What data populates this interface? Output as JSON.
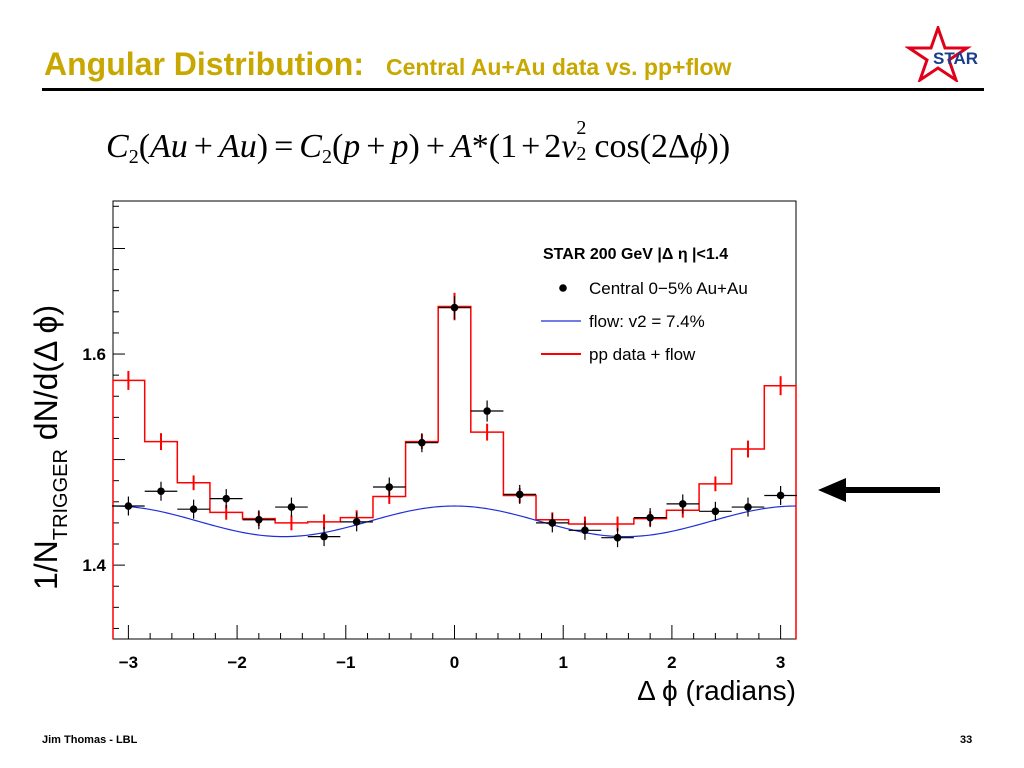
{
  "slide": {
    "title_main": "Angular Distribution:",
    "title_sub": "Central Au+Au data vs. pp+flow",
    "logo_text": "STAR",
    "footer_left": "Jim Thomas - LBL",
    "page_number": "33",
    "colors": {
      "title": "#c8a800",
      "star_logo": "#e0001a",
      "logo_text": "#1a3c8c",
      "data_red": "#ff0000",
      "flow_blue": "#1f2fd8"
    }
  },
  "formula": {
    "c": "C",
    "two": "2",
    "au": "Au",
    "plus": "+",
    "eq": "=",
    "p": "p",
    "a": "A",
    "star": "*",
    "one": "1",
    "two_v": "2",
    "v": "v",
    "sq": "2",
    "cos": "cos",
    "delta": "Δ",
    "phi": "ϕ",
    "lparen": "(",
    "rparen": ")"
  },
  "chart_data": {
    "type": "scatter",
    "xlabel": "Δ ϕ (radians)",
    "ylabel_main": "1/N",
    "ylabel_sub": "TRIGGER",
    "ylabel_rest": "dN/d(Δ ϕ)",
    "xlim": [
      -3.14159,
      3.14159
    ],
    "ylim": [
      1.33,
      1.745
    ],
    "xticks": [
      -3,
      -2,
      -1,
      0,
      1,
      2,
      3
    ],
    "xtick_labels": [
      "−3",
      "−2",
      "−1",
      "0",
      "1",
      "2",
      "3"
    ],
    "yticks": [
      1.4,
      1.6
    ],
    "ytick_labels": [
      "1.4",
      "1.6"
    ],
    "grid": false,
    "legend": {
      "position": "top-right",
      "header": "STAR 200 GeV |Δ η |<1.4",
      "entries": [
        "Central 0−5% Au+Au",
        "flow: v2 = 7.4%",
        "pp data + flow"
      ]
    },
    "series": [
      {
        "name": "Central 0−5% Au+Au",
        "style": "points",
        "color": "#000000",
        "x": [
          -3.0,
          -2.7,
          -2.4,
          -2.1,
          -1.8,
          -1.5,
          -1.2,
          -0.9,
          -0.6,
          -0.3,
          0.0,
          0.3,
          0.6,
          0.9,
          1.2,
          1.5,
          1.8,
          2.1,
          2.4,
          2.7,
          3.0
        ],
        "y": [
          1.456,
          1.47,
          1.453,
          1.463,
          1.443,
          1.455,
          1.427,
          1.441,
          1.474,
          1.516,
          1.644,
          1.546,
          1.467,
          1.44,
          1.433,
          1.426,
          1.445,
          1.458,
          1.451,
          1.455,
          1.466
        ],
        "yerr": [
          0.009,
          0.009,
          0.009,
          0.009,
          0.009,
          0.009,
          0.009,
          0.009,
          0.009,
          0.009,
          0.011,
          0.01,
          0.009,
          0.009,
          0.009,
          0.009,
          0.009,
          0.009,
          0.009,
          0.009,
          0.009
        ]
      },
      {
        "name": "flow: v2 = 7.4%",
        "style": "line",
        "color": "#1f2fd8",
        "function": "cosine",
        "mean": 1.4415,
        "amplitude": 0.0145
      },
      {
        "name": "pp data + flow",
        "style": "step",
        "color": "#ff0000",
        "x": [
          -3.0,
          -2.7,
          -2.4,
          -2.1,
          -1.8,
          -1.5,
          -1.2,
          -0.9,
          -0.6,
          -0.3,
          0.0,
          0.3,
          0.6,
          0.9,
          1.2,
          1.5,
          1.8,
          2.1,
          2.4,
          2.7,
          3.0
        ],
        "y": [
          1.575,
          1.517,
          1.478,
          1.45,
          1.444,
          1.44,
          1.441,
          1.445,
          1.465,
          1.517,
          1.645,
          1.526,
          1.466,
          1.443,
          1.439,
          1.439,
          1.444,
          1.452,
          1.477,
          1.51,
          1.57
        ],
        "yerr": [
          0.009,
          0.008,
          0.007,
          0.007,
          0.007,
          0.007,
          0.007,
          0.007,
          0.007,
          0.007,
          0.013,
          0.008,
          0.007,
          0.007,
          0.007,
          0.007,
          0.007,
          0.007,
          0.007,
          0.008,
          0.009
        ]
      }
    ]
  }
}
